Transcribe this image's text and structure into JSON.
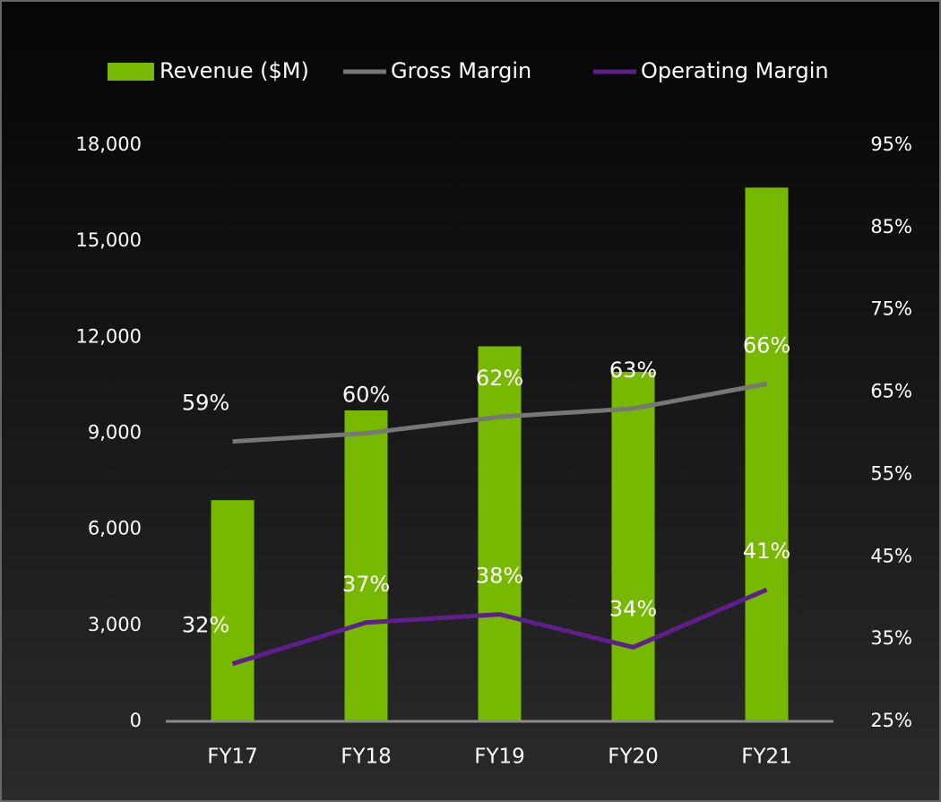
{
  "chart_data": {
    "type": "bar",
    "categories": [
      "FY17",
      "FY18",
      "FY19",
      "FY20",
      "FY21"
    ],
    "series": [
      {
        "name": "Revenue ($M)",
        "type": "bar",
        "color": "#76b900",
        "values": [
          6910,
          9714,
          11716,
          10918,
          16675
        ]
      },
      {
        "name": "Gross Margin",
        "type": "line",
        "axis": "y2",
        "color": "#777777",
        "values": [
          59,
          60,
          62,
          63,
          66
        ],
        "value_labels": [
          "59%",
          "60%",
          "62%",
          "63%",
          "66%"
        ]
      },
      {
        "name": "Operating Margin",
        "type": "line",
        "axis": "y2",
        "color": "#5e1e8c",
        "values": [
          32,
          37,
          38,
          34,
          41
        ],
        "value_labels": [
          "32%",
          "37%",
          "38%",
          "34%",
          "41%"
        ]
      }
    ],
    "ylim": [
      0,
      18000
    ],
    "yticks": [
      0,
      {
        "value": 3000,
        "label": "3,000"
      },
      {
        "value": 6000,
        "label": "6,000"
      },
      {
        "value": 9000,
        "label": "9,000"
      },
      {
        "value": 12000,
        "label": "12,000"
      },
      {
        "value": 15000,
        "label": "15,000"
      },
      {
        "value": 18000,
        "label": "18,000"
      }
    ],
    "y2lim": [
      25,
      95
    ],
    "y2ticks": [
      {
        "value": 25,
        "label": "25%"
      },
      {
        "value": 35,
        "label": "35%"
      },
      {
        "value": 45,
        "label": "45%"
      },
      {
        "value": 55,
        "label": "55%"
      },
      {
        "value": 65,
        "label": "65%"
      },
      {
        "value": 75,
        "label": "75%"
      },
      {
        "value": 85,
        "label": "85%"
      },
      {
        "value": 95,
        "label": "95%"
      }
    ],
    "legend": "top"
  }
}
